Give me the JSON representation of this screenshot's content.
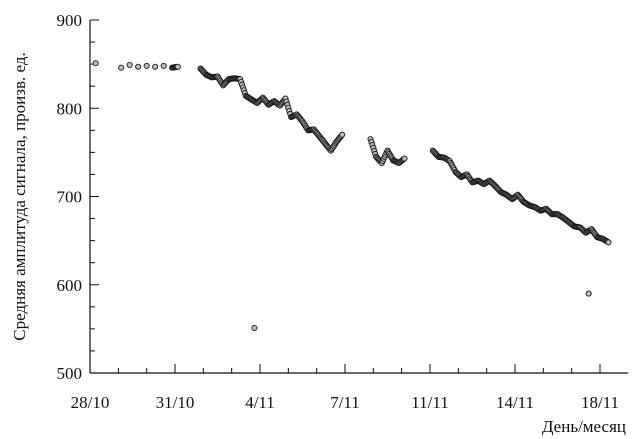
{
  "chart_data": {
    "type": "scatter",
    "ylabel": "Средняя амплитуда сигнала, произв. ед.",
    "xlabel": "День/месяц",
    "ylim": [
      500,
      900
    ],
    "yticks": [
      500,
      600,
      700,
      800,
      900
    ],
    "xticks": [
      {
        "label": "28/10",
        "day": 0
      },
      {
        "label": "31/10",
        "day": 3
      },
      {
        "label": "4/11",
        "day": 6
      },
      {
        "label": "7/11",
        "day": 9
      },
      {
        "label": "11/11",
        "day": 12
      },
      {
        "label": "14/11",
        "day": 15
      },
      {
        "label": "18/11",
        "day": 18
      }
    ],
    "xlim": [
      0,
      19
    ],
    "grid": false,
    "series": [
      {
        "points": [
          [
            0.2,
            851
          ],
          [
            1.1,
            846
          ],
          [
            1.4,
            849
          ],
          [
            1.7,
            847
          ],
          [
            2.0,
            848
          ],
          [
            2.3,
            847
          ],
          [
            2.6,
            848
          ],
          [
            2.9,
            846
          ],
          [
            3.1,
            847
          ],
          [
            3.9,
            845
          ],
          [
            4.1,
            838
          ],
          [
            4.3,
            835
          ],
          [
            4.5,
            836
          ],
          [
            4.7,
            826
          ],
          [
            4.9,
            833
          ],
          [
            5.1,
            834
          ],
          [
            5.3,
            833
          ],
          [
            5.5,
            814
          ],
          [
            5.7,
            810
          ],
          [
            5.9,
            806
          ],
          [
            6.1,
            812
          ],
          [
            6.3,
            804
          ],
          [
            6.5,
            808
          ],
          [
            6.7,
            803
          ],
          [
            6.9,
            811
          ],
          [
            7.1,
            790
          ],
          [
            7.3,
            793
          ],
          [
            7.5,
            785
          ],
          [
            7.7,
            775
          ],
          [
            7.9,
            776
          ],
          [
            8.1,
            768
          ],
          [
            8.3,
            760
          ],
          [
            8.5,
            752
          ],
          [
            8.7,
            762
          ],
          [
            8.9,
            770
          ],
          [
            9.9,
            765
          ],
          [
            10.1,
            745
          ],
          [
            10.3,
            738
          ],
          [
            10.5,
            752
          ],
          [
            10.7,
            741
          ],
          [
            10.9,
            738
          ],
          [
            11.1,
            743
          ],
          [
            12.1,
            752
          ],
          [
            12.3,
            745
          ],
          [
            12.5,
            744
          ],
          [
            12.7,
            740
          ],
          [
            12.9,
            728
          ],
          [
            13.1,
            722
          ],
          [
            13.3,
            725
          ],
          [
            13.5,
            716
          ],
          [
            13.7,
            718
          ],
          [
            13.9,
            714
          ],
          [
            14.1,
            718
          ],
          [
            14.3,
            712
          ],
          [
            14.5,
            705
          ],
          [
            14.7,
            702
          ],
          [
            14.9,
            697
          ],
          [
            15.1,
            702
          ],
          [
            15.3,
            694
          ],
          [
            15.5,
            690
          ],
          [
            15.7,
            688
          ],
          [
            15.9,
            684
          ],
          [
            16.1,
            686
          ],
          [
            16.3,
            680
          ],
          [
            16.5,
            680
          ],
          [
            16.7,
            676
          ],
          [
            16.9,
            671
          ],
          [
            17.1,
            666
          ],
          [
            17.3,
            665
          ],
          [
            17.5,
            659
          ],
          [
            17.7,
            663
          ],
          [
            17.9,
            654
          ],
          [
            18.1,
            652
          ],
          [
            18.3,
            648
          ],
          [
            5.8,
            551
          ],
          [
            17.6,
            590
          ]
        ]
      }
    ]
  }
}
